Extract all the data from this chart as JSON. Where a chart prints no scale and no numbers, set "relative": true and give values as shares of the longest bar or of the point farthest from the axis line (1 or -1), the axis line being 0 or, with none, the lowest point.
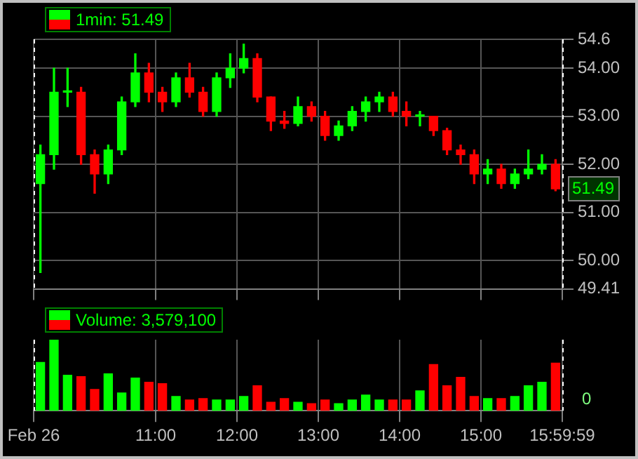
{
  "chart_data": [
    {
      "type": "candlestick",
      "title": "1min: 51.49",
      "colors": [
        "#00ff00",
        "#00ff00",
        "#00ff00",
        "#ff0000",
        "#ff0000",
        "#00ff00",
        "#00ff00",
        "#00ff00",
        "#ff0000",
        "#ff0000",
        "#00ff00",
        "#ff0000",
        "#ff0000",
        "#00ff00",
        "#00ff00",
        "#00ff00",
        "#ff0000",
        "#ff0000",
        "#ff0000",
        "#00ff00",
        "#ff0000",
        "#ff0000",
        "#00ff00",
        "#00ff00",
        "#00ff00",
        "#00ff00",
        "#ff0000",
        "#ff0000",
        "#00ff00",
        "#ff0000",
        "#ff0000",
        "#ff0000",
        "#ff0000",
        "#00ff00",
        "#ff0000",
        "#00ff00",
        "#00ff00",
        "#00ff00",
        "#ff0000"
      ],
      "x": [
        9.583,
        9.75,
        9.917,
        10.083,
        10.25,
        10.417,
        10.583,
        10.75,
        10.917,
        11.083,
        11.25,
        11.417,
        11.583,
        11.75,
        11.917,
        12.083,
        12.25,
        12.417,
        12.583,
        12.75,
        12.917,
        13.083,
        13.25,
        13.417,
        13.583,
        13.75,
        13.917,
        14.083,
        14.25,
        14.417,
        14.583,
        14.75,
        14.917,
        15.083,
        15.25,
        15.417,
        15.583,
        15.75,
        15.917
      ],
      "ohlc": [
        [
          51.6,
          52.4,
          49.75,
          52.2
        ],
        [
          52.2,
          54.0,
          51.9,
          53.5
        ],
        [
          53.5,
          54.0,
          53.2,
          53.5
        ],
        [
          53.5,
          53.6,
          52.0,
          52.2
        ],
        [
          52.2,
          52.3,
          51.4,
          51.8
        ],
        [
          51.8,
          52.4,
          51.6,
          52.3
        ],
        [
          52.3,
          53.4,
          52.2,
          53.3
        ],
        [
          53.3,
          54.3,
          53.2,
          53.9
        ],
        [
          53.9,
          54.1,
          53.3,
          53.5
        ],
        [
          53.5,
          53.6,
          53.1,
          53.3
        ],
        [
          53.3,
          53.9,
          53.2,
          53.8
        ],
        [
          53.8,
          54.1,
          53.4,
          53.5
        ],
        [
          53.5,
          53.6,
          53.0,
          53.1
        ],
        [
          53.1,
          53.9,
          53.0,
          53.8
        ],
        [
          53.8,
          54.3,
          53.6,
          54.0
        ],
        [
          54.0,
          54.5,
          53.9,
          54.2
        ],
        [
          54.2,
          54.3,
          53.3,
          53.4
        ],
        [
          53.4,
          53.4,
          52.7,
          52.9
        ],
        [
          52.9,
          53.1,
          52.75,
          52.85
        ],
        [
          52.85,
          53.4,
          52.8,
          53.2
        ],
        [
          53.2,
          53.3,
          52.9,
          53.0
        ],
        [
          53.0,
          53.1,
          52.5,
          52.6
        ],
        [
          52.6,
          52.9,
          52.5,
          52.8
        ],
        [
          52.8,
          53.2,
          52.7,
          53.1
        ],
        [
          53.1,
          53.4,
          52.9,
          53.3
        ],
        [
          53.3,
          53.5,
          53.1,
          53.4
        ],
        [
          53.4,
          53.5,
          53.0,
          53.1
        ],
        [
          53.1,
          53.3,
          52.8,
          53.0
        ],
        [
          53.0,
          53.1,
          52.8,
          53.0
        ],
        [
          53.0,
          53.0,
          52.6,
          52.7
        ],
        [
          52.7,
          52.75,
          52.2,
          52.3
        ],
        [
          52.3,
          52.4,
          52.0,
          52.2
        ],
        [
          52.2,
          52.3,
          51.6,
          51.8
        ],
        [
          51.8,
          52.1,
          51.6,
          51.9
        ],
        [
          51.9,
          52.0,
          51.5,
          51.6
        ],
        [
          51.6,
          51.9,
          51.5,
          51.8
        ],
        [
          51.8,
          52.3,
          51.7,
          51.9
        ],
        [
          51.9,
          52.2,
          51.8,
          52.0
        ],
        [
          52.0,
          52.1,
          51.45,
          51.49
        ]
      ],
      "xlim": [
        9.5,
        16
      ],
      "xticks": [
        {
          "value": 9.5,
          "label": null
        },
        {
          "value": 11,
          "label": null
        },
        {
          "value": 12,
          "label": null
        },
        {
          "value": 13,
          "label": null
        },
        {
          "value": 14,
          "label": null
        },
        {
          "value": 15,
          "label": null
        },
        {
          "value": 15.99972,
          "label": null
        }
      ],
      "ylim": [
        49.41,
        54.6
      ],
      "yticks": [
        49.41,
        {
          "value": 50,
          "label": "50.00"
        },
        {
          "value": 51,
          "label": "51.00"
        },
        {
          "value": 52,
          "label": "52.00"
        },
        {
          "value": 53,
          "label": "53.00"
        },
        {
          "value": 54,
          "label": "54.00"
        },
        54.6
      ],
      "tick_labels": "y",
      "grid": true,
      "ref_lines": [
        {
          "axis": "x",
          "value": 9.5,
          "color": "#ffffff",
          "line_style": "dashed"
        },
        {
          "axis": "x",
          "value": 15.99972,
          "color": "#ffffff",
          "line_style": "dashed"
        }
      ],
      "annotations": [
        "51.49"
      ]
    },
    {
      "type": "bar",
      "relative": true,
      "title": "Volume: 3,579,100",
      "x": [
        9.583,
        9.75,
        9.917,
        10.083,
        10.25,
        10.417,
        10.583,
        10.75,
        10.917,
        11.083,
        11.25,
        11.417,
        11.583,
        11.75,
        11.917,
        12.083,
        12.25,
        12.417,
        12.583,
        12.75,
        12.917,
        13.083,
        13.25,
        13.417,
        13.583,
        13.75,
        13.917,
        14.083,
        14.25,
        14.417,
        14.583,
        14.75,
        14.917,
        15.083,
        15.25,
        15.417,
        15.583,
        15.75,
        15.917
      ],
      "values": [
        0.68,
        1.0,
        0.5,
        0.48,
        0.3,
        0.52,
        0.25,
        0.46,
        0.4,
        0.38,
        0.2,
        0.15,
        0.17,
        0.15,
        0.15,
        0.2,
        0.35,
        0.12,
        0.17,
        0.12,
        0.1,
        0.15,
        0.1,
        0.15,
        0.22,
        0.15,
        0.15,
        0.15,
        0.28,
        0.65,
        0.35,
        0.47,
        0.2,
        0.17,
        0.17,
        0.2,
        0.35,
        0.4,
        0.67
      ],
      "colors": [
        "#00ff00",
        "#00ff00",
        "#00ff00",
        "#ff0000",
        "#ff0000",
        "#00ff00",
        "#00ff00",
        "#00ff00",
        "#ff0000",
        "#ff0000",
        "#00ff00",
        "#ff0000",
        "#ff0000",
        "#00ff00",
        "#00ff00",
        "#00ff00",
        "#ff0000",
        "#ff0000",
        "#ff0000",
        "#00ff00",
        "#ff0000",
        "#ff0000",
        "#00ff00",
        "#00ff00",
        "#00ff00",
        "#00ff00",
        "#ff0000",
        "#ff0000",
        "#00ff00",
        "#ff0000",
        "#ff0000",
        "#ff0000",
        "#ff0000",
        "#00ff00",
        "#ff0000",
        "#00ff00",
        "#00ff00",
        "#00ff00",
        "#ff0000"
      ],
      "xlim": [
        9.5,
        16
      ],
      "xticks": [
        {
          "value": 9.5,
          "label": "Feb 26"
        },
        {
          "value": 11,
          "label": "11:00"
        },
        {
          "value": 12,
          "label": "12:00"
        },
        {
          "value": 13,
          "label": "13:00"
        },
        {
          "value": 14,
          "label": "14:00"
        },
        {
          "value": 15,
          "label": "15:00"
        },
        {
          "value": 15.99972,
          "label": "15:59:59"
        }
      ],
      "tick_labels": "x",
      "grid": "x",
      "ref_lines": [
        {
          "axis": "x",
          "value": 9.5,
          "color": "#ffffff",
          "line_style": "dashed"
        },
        {
          "axis": "x",
          "value": 15.99972,
          "color": "#ffffff",
          "line_style": "dashed"
        }
      ],
      "annotations": [
        "0"
      ]
    }
  ]
}
